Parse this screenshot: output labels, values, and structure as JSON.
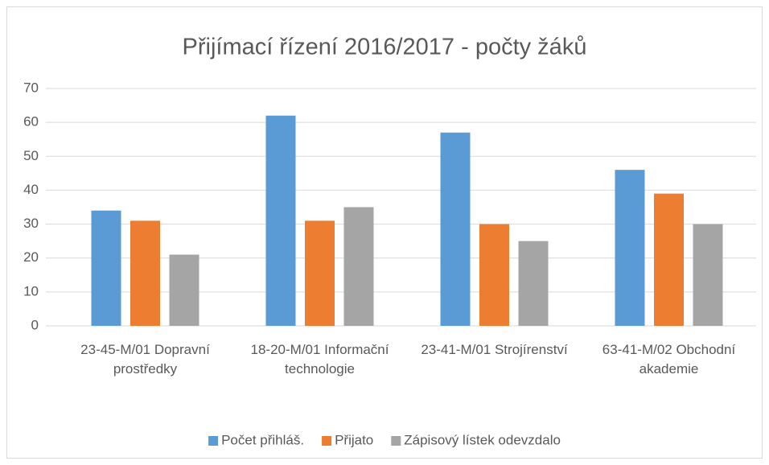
{
  "chart_data": {
    "type": "bar",
    "title": "Přijímací řízení 2016/2017 - počty žáků",
    "categories": [
      "23-45-M/01 Dopravní prostředky",
      "18-20-M/01 Informační technologie",
      "23-41-M/01 Strojírenství",
      "63-41-M/02 Obchodní akademie"
    ],
    "series": [
      {
        "name": "Počet přihláš.",
        "color": "#5b9bd5",
        "values": [
          34,
          62,
          57,
          46
        ]
      },
      {
        "name": "Přijato",
        "color": "#ed7d31",
        "values": [
          31,
          31,
          30,
          39
        ]
      },
      {
        "name": "Zápisový lístek odevzdalo",
        "color": "#a5a5a5",
        "values": [
          21,
          35,
          25,
          30
        ]
      }
    ],
    "ylim": [
      0,
      70
    ],
    "yticks": [
      0,
      10,
      20,
      30,
      40,
      50,
      60,
      70
    ],
    "grid": true,
    "legend": "bottom"
  }
}
